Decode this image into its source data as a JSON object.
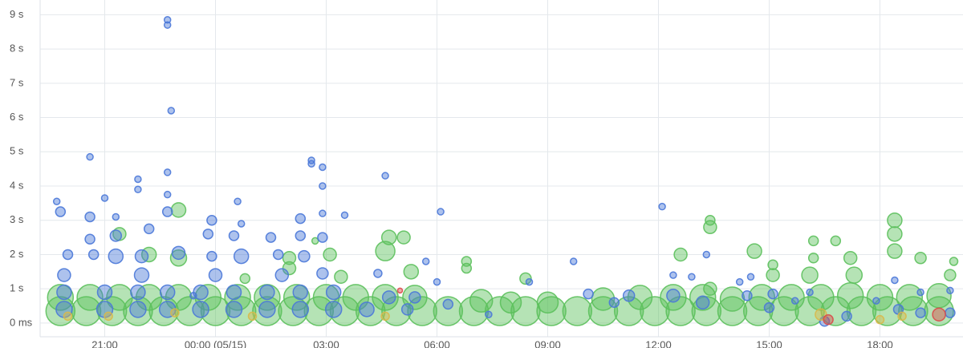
{
  "chart_data": {
    "type": "bubble",
    "xlim": [
      19.25,
      44.25
    ],
    "xticks": [
      {
        "value": 21,
        "label": "21:00"
      },
      {
        "value": 24,
        "label": "00:00 (05/15)"
      },
      {
        "value": 27,
        "label": "03:00"
      },
      {
        "value": 30,
        "label": "06:00"
      },
      {
        "value": 33,
        "label": "09:00"
      },
      {
        "value": 36,
        "label": "12:00"
      },
      {
        "value": 39,
        "label": "15:00"
      },
      {
        "value": 42,
        "label": "18:00"
      }
    ],
    "ylim": [
      -0.4,
      9.43
    ],
    "yticks": [
      {
        "value": 0,
        "label": "0 ms"
      },
      {
        "value": 1,
        "label": "1 s"
      },
      {
        "value": 2,
        "label": "2 s"
      },
      {
        "value": 3,
        "label": "3 s"
      },
      {
        "value": 4,
        "label": "4 s"
      },
      {
        "value": 5,
        "label": "5 s"
      },
      {
        "value": 6,
        "label": "6 s"
      },
      {
        "value": 7,
        "label": "7 s"
      },
      {
        "value": 8,
        "label": "8 s"
      },
      {
        "value": 9,
        "label": "9 s"
      }
    ],
    "grid": true,
    "series": [
      {
        "color": "#5cc05c",
        "x": [
          19.8,
          20.5,
          21.2,
          21.9,
          22.6,
          23.3,
          24.0,
          24.7,
          25.4,
          26.1,
          26.8,
          27.5,
          28.2,
          28.9,
          29.6,
          30.3,
          31.0,
          31.7,
          32.4,
          33.1,
          33.8,
          34.5,
          35.2,
          35.9,
          36.6,
          37.3,
          38.0,
          38.7,
          39.4,
          40.1,
          40.8,
          41.5,
          42.2,
          42.9,
          43.6,
          19.8,
          20.6,
          21.4,
          22.2,
          23.0,
          23.8,
          24.6,
          25.4,
          26.2,
          27.0,
          27.8,
          28.6,
          29.4,
          31.2,
          32.0,
          33.0,
          34.5,
          35.5,
          36.4,
          37.2,
          38.0,
          38.8,
          39.6,
          40.4,
          41.2,
          42.0,
          42.8,
          43.6,
          23.0,
          23.0,
          22.2,
          21.4,
          27.1,
          28.7,
          28.6,
          29.1,
          29.3,
          36.6,
          37.4,
          37.4,
          37.4,
          38.6,
          40.2,
          40.1,
          40.2,
          41.2,
          41.3,
          42.4,
          42.4,
          42.4,
          43.1,
          44.0,
          43.9,
          40.8,
          39.1,
          39.1,
          32.4,
          30.8,
          30.8,
          24.8,
          26.0,
          26.0,
          27.4,
          26.7
        ],
        "y": [
          0.35,
          0.35,
          0.35,
          0.35,
          0.35,
          0.35,
          0.35,
          0.35,
          0.35,
          0.35,
          0.35,
          0.35,
          0.35,
          0.35,
          0.35,
          0.35,
          0.35,
          0.35,
          0.35,
          0.35,
          0.35,
          0.35,
          0.35,
          0.35,
          0.35,
          0.35,
          0.35,
          0.35,
          0.35,
          0.35,
          0.35,
          0.35,
          0.35,
          0.35,
          0.35,
          0.75,
          0.75,
          0.75,
          0.75,
          0.75,
          0.75,
          0.75,
          0.75,
          0.75,
          0.75,
          0.75,
          0.75,
          0.75,
          0.65,
          0.6,
          0.6,
          0.7,
          0.75,
          0.75,
          0.75,
          0.7,
          0.75,
          0.75,
          0.75,
          0.8,
          0.75,
          0.75,
          0.8,
          1.9,
          3.3,
          2.0,
          2.6,
          2.0,
          2.5,
          2.1,
          2.5,
          1.5,
          2.0,
          1.0,
          2.8,
          3.0,
          2.1,
          1.9,
          1.4,
          2.4,
          1.9,
          1.4,
          3.0,
          2.6,
          2.1,
          1.9,
          1.8,
          1.4,
          2.4,
          1.4,
          1.7,
          1.3,
          1.6,
          1.8,
          1.3,
          1.6,
          1.9,
          1.35,
          2.4
        ],
        "size": [
          18,
          18,
          18,
          18,
          18,
          18,
          18,
          18,
          18,
          18,
          18,
          18,
          18,
          18,
          18,
          18,
          18,
          18,
          18,
          18,
          18,
          18,
          18,
          18,
          18,
          18,
          18,
          18,
          18,
          18,
          18,
          18,
          18,
          18,
          18,
          16,
          16,
          16,
          16,
          16,
          16,
          16,
          16,
          16,
          16,
          16,
          16,
          15,
          14,
          13,
          13,
          14,
          15,
          16,
          16,
          15,
          16,
          16,
          16,
          16,
          16,
          16,
          15,
          10,
          9,
          9,
          8,
          8,
          9,
          12,
          8,
          9,
          8,
          8,
          8,
          6,
          9,
          6,
          10,
          6,
          8,
          10,
          9,
          9,
          9,
          7,
          5,
          7,
          6,
          8,
          6,
          7,
          6,
          6,
          6,
          8,
          8,
          8,
          4
        ]
      },
      {
        "color": "#4a78d8",
        "x": [
          19.9,
          19.9,
          21.0,
          21.0,
          21.9,
          21.9,
          22.7,
          22.7,
          23.6,
          23.6,
          24.5,
          24.5,
          25.4,
          25.4,
          26.3,
          26.3,
          27.2,
          27.2,
          28.1,
          28.7,
          29.4,
          19.7,
          19.8,
          20.0,
          19.9,
          20.6,
          20.6,
          20.6,
          20.7,
          21.0,
          21.3,
          21.3,
          21.3,
          21.9,
          21.9,
          22.2,
          22.0,
          22.0,
          22.7,
          22.7,
          22.8,
          22.7,
          22.7,
          22.7,
          23.0,
          23.4,
          23.9,
          23.8,
          23.9,
          24.0,
          24.6,
          24.7,
          24.5,
          24.7,
          25.5,
          25.7,
          25.8,
          26.3,
          26.3,
          26.4,
          26.6,
          26.6,
          26.9,
          26.9,
          26.9,
          27.5,
          26.9,
          26.9,
          28.6,
          28.4,
          29.7,
          30.1,
          30.0,
          29.2,
          30.3,
          31.4,
          32.5,
          33.7,
          34.1,
          34.8,
          35.2,
          36.1,
          36.4,
          36.4,
          36.9,
          37.3,
          37.2,
          38.2,
          38.5,
          38.4,
          39.0,
          39.1,
          39.7,
          40.1,
          40.5,
          41.1,
          41.9,
          42.4,
          42.5,
          43.1,
          43.1,
          43.9,
          43.9
        ],
        "y": [
          0.4,
          0.9,
          0.4,
          0.9,
          0.4,
          0.9,
          0.4,
          0.9,
          0.4,
          0.9,
          0.4,
          0.9,
          0.4,
          0.9,
          0.4,
          0.9,
          0.4,
          0.9,
          0.4,
          0.75,
          0.75,
          3.55,
          3.25,
          2.0,
          1.4,
          4.85,
          3.1,
          2.45,
          2.0,
          3.65,
          3.1,
          2.55,
          1.95,
          4.2,
          3.9,
          2.75,
          1.95,
          1.4,
          8.85,
          8.7,
          6.2,
          4.4,
          3.75,
          3.25,
          2.05,
          0.8,
          3.0,
          2.6,
          1.95,
          1.4,
          3.55,
          2.9,
          2.55,
          1.95,
          2.5,
          2.0,
          1.4,
          3.05,
          2.55,
          1.95,
          4.75,
          4.65,
          4.55,
          4.0,
          3.2,
          3.15,
          2.5,
          1.45,
          4.3,
          1.45,
          1.8,
          3.25,
          1.2,
          0.4,
          0.55,
          0.25,
          1.2,
          1.8,
          0.85,
          0.6,
          0.8,
          3.4,
          1.4,
          0.8,
          1.35,
          2.0,
          0.6,
          1.2,
          1.35,
          0.8,
          0.45,
          0.85,
          0.65,
          0.9,
          0.05,
          0.2,
          0.65,
          1.25,
          0.4,
          0.9,
          0.3,
          0.95,
          0.3
        ],
        "size": [
          10,
          9,
          10,
          9,
          10,
          9,
          10,
          9,
          10,
          9,
          10,
          9,
          10,
          9,
          10,
          9,
          10,
          9,
          9,
          8,
          7,
          4,
          6,
          6,
          8,
          4,
          6,
          6,
          6,
          4,
          4,
          7,
          9,
          4,
          4,
          6,
          8,
          9,
          4,
          4,
          4,
          4,
          4,
          6,
          8,
          4,
          6,
          6,
          6,
          8,
          4,
          4,
          6,
          9,
          6,
          6,
          8,
          6,
          6,
          7,
          4,
          4,
          4,
          4,
          4,
          4,
          6,
          7,
          4,
          5,
          4,
          4,
          4,
          7,
          6,
          4,
          4,
          4,
          6,
          6,
          7,
          4,
          4,
          8,
          4,
          4,
          8,
          4,
          4,
          6,
          6,
          6,
          4,
          4,
          6,
          6,
          4,
          4,
          6,
          4,
          6,
          4,
          6
        ]
      },
      {
        "color": "#d9b84a",
        "x": [
          20.0,
          21.1,
          22.9,
          25.0,
          28.6,
          40.4,
          42.0,
          42.6
        ],
        "y": [
          0.2,
          0.2,
          0.3,
          0.2,
          0.2,
          0.25,
          0.1,
          0.2
        ],
        "size": [
          5,
          5,
          5,
          5,
          5,
          7,
          5,
          5
        ]
      },
      {
        "color": "#d94a4a",
        "x": [
          29.0,
          43.6,
          40.6
        ],
        "y": [
          0.95,
          0.25,
          0.1
        ],
        "size": [
          3,
          8,
          6
        ]
      }
    ]
  }
}
